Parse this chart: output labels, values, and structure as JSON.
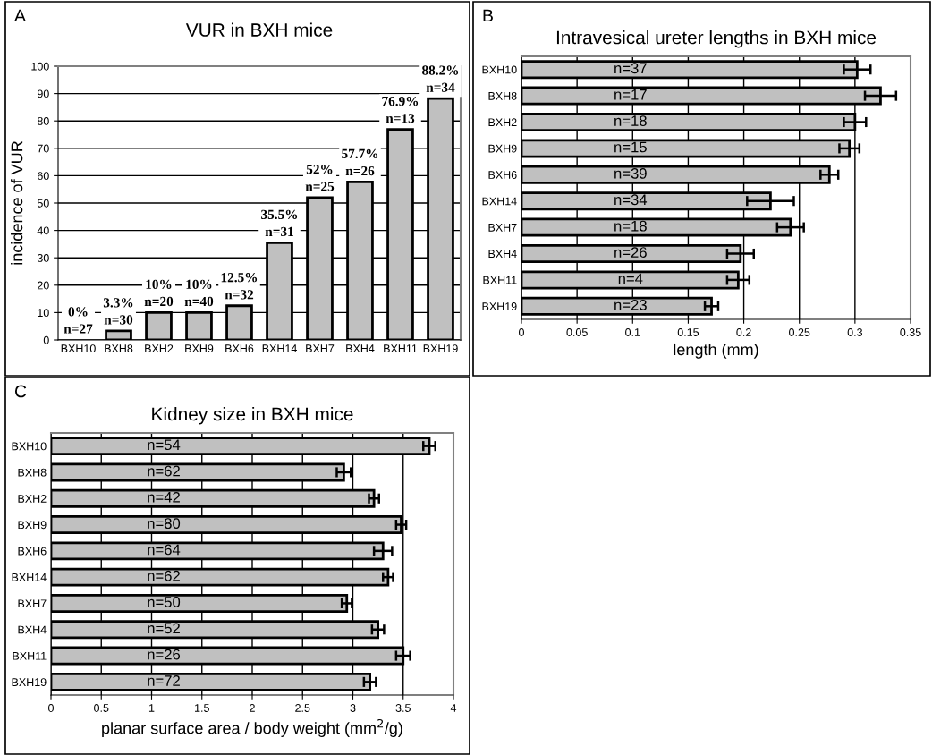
{
  "chart_data": [
    {
      "type": "bar",
      "title": "VUR in BXH mice",
      "ylabel": "incidence of VUR",
      "annotations": [
        "A"
      ],
      "categories": [
        "BXH10",
        "BXH8",
        "BXH2",
        "BXH9",
        "BXH6",
        "BXH14",
        "BXH7",
        "BXH4",
        "BXH11",
        "BXH19"
      ],
      "values": [
        0,
        3.3,
        10,
        10,
        12.5,
        35.5,
        52,
        57.7,
        76.9,
        88.2
      ],
      "color": "#c0c0c0",
      "value_labels": [
        "0%\nn=27",
        "3.3%\nn=30",
        "10%\nn=20",
        "10%\nn=40",
        "12.5%\nn=32",
        "35.5%\nn=31",
        "52%\nn=25",
        "57.7%\nn=26",
        "76.9%\nn=13",
        "88.2%\nn=34"
      ],
      "ylim": [
        0,
        100
      ],
      "yticks": [
        0,
        10,
        20,
        30,
        40,
        50,
        60,
        70,
        80,
        90,
        100
      ],
      "grid": "y"
    },
    {
      "type": "bar",
      "orientation": "horizontal",
      "title": "Intravesical ureter lengths in BXH mice",
      "xlabel": "length (mm)",
      "categories": [
        "BXH10",
        "BXH8",
        "BXH2",
        "BXH9",
        "BXH6",
        "BXH14",
        "BXH7",
        "BXH4",
        "BXH11",
        "BXH19"
      ],
      "values": [
        0.302,
        0.323,
        0.3,
        0.295,
        0.277,
        0.224,
        0.242,
        0.197,
        0.195,
        0.171
      ],
      "color": "#c0c0c0",
      "errors": [
        0.012,
        0.014,
        0.01,
        0.009,
        0.008,
        0.021,
        0.012,
        0.012,
        0.01,
        0.006
      ],
      "annotations": [
        "B",
        {
          "text": "n=37",
          "y": "BXH10"
        },
        {
          "text": "n=17",
          "y": "BXH8"
        },
        {
          "text": "n=18",
          "y": "BXH2"
        },
        {
          "text": "n=15",
          "y": "BXH9"
        },
        {
          "text": "n=39",
          "y": "BXH6"
        },
        {
          "text": "n=34",
          "y": "BXH14"
        },
        {
          "text": "n=18",
          "y": "BXH7"
        },
        {
          "text": "n=26",
          "y": "BXH4"
        },
        {
          "text": "n=4",
          "y": "BXH11"
        },
        {
          "text": "n=23",
          "y": "BXH19"
        }
      ],
      "xlim": [
        0,
        0.35
      ],
      "xticks": [
        0,
        0.05,
        0.1,
        0.15,
        0.2,
        0.25,
        0.3,
        0.35
      ],
      "grid": "x"
    },
    {
      "type": "bar",
      "orientation": "horizontal",
      "title": "Kidney size in BXH mice",
      "xlabel": "planar surface area / body weight (mm$^{2}$/g)",
      "categories": [
        "BXH10",
        "BXH8",
        "BXH2",
        "BXH9",
        "BXH6",
        "BXH14",
        "BXH7",
        "BXH4",
        "BXH11",
        "BXH19"
      ],
      "values": [
        3.76,
        2.91,
        3.21,
        3.48,
        3.3,
        3.35,
        2.94,
        3.25,
        3.5,
        3.17
      ],
      "color": "#c0c0c0",
      "errors": [
        0.06,
        0.07,
        0.05,
        0.05,
        0.09,
        0.05,
        0.05,
        0.06,
        0.07,
        0.06
      ],
      "annotations": [
        "C",
        {
          "text": "n=54",
          "y": "BXH10"
        },
        {
          "text": "n=62",
          "y": "BXH8"
        },
        {
          "text": "n=42",
          "y": "BXH2"
        },
        {
          "text": "n=80",
          "y": "BXH9"
        },
        {
          "text": "n=64",
          "y": "BXH6"
        },
        {
          "text": "n=62",
          "y": "BXH14"
        },
        {
          "text": "n=50",
          "y": "BXH7"
        },
        {
          "text": "n=52",
          "y": "BXH4"
        },
        {
          "text": "n=26",
          "y": "BXH11"
        },
        {
          "text": "n=72",
          "y": "BXH19"
        }
      ],
      "xlim": [
        0,
        4
      ],
      "xticks": [
        0,
        0.5,
        1,
        1.5,
        2,
        2.5,
        3,
        3.5,
        4
      ],
      "grid": "x"
    }
  ]
}
